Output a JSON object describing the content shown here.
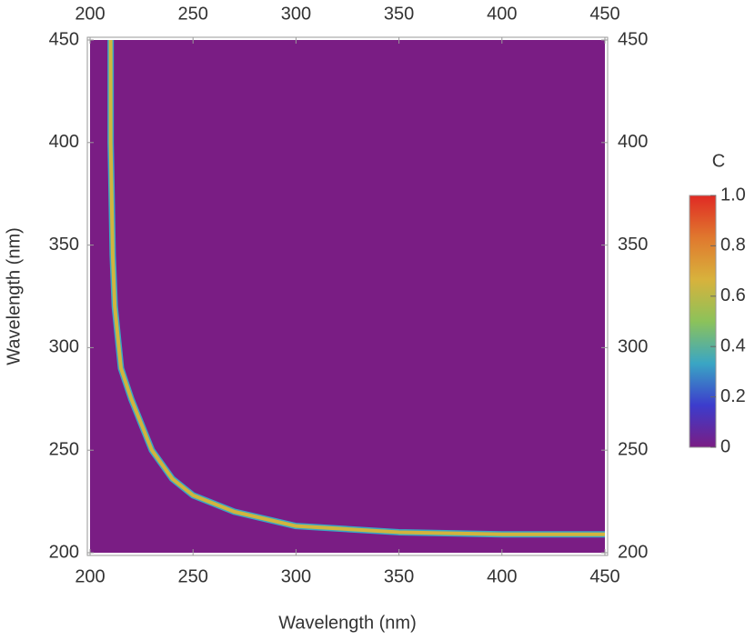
{
  "chart_data": {
    "type": "heatmap-curve",
    "xlabel": "Wavelength (nm)",
    "ylabel": "Wavelength (nm)",
    "xlim": [
      200,
      450
    ],
    "ylim": [
      200,
      450
    ],
    "xticks": [
      200,
      250,
      300,
      350,
      400,
      450
    ],
    "yticks": [
      200,
      250,
      300,
      350,
      400,
      450
    ],
    "background": "#7a1d84",
    "series": [
      {
        "color": "#d2b43e",
        "x": [
          210,
          210,
          211,
          212,
          215,
          220,
          230,
          240,
          250,
          270,
          300,
          350,
          400,
          450
        ],
        "values": [
          450,
          400,
          345,
          320,
          290,
          275,
          250,
          236,
          228,
          220,
          213,
          210,
          209,
          209
        ]
      }
    ],
    "colorbar": {
      "title": "C",
      "lim": [
        0,
        1
      ],
      "ticks": [
        0,
        0.2,
        0.4,
        0.6,
        0.8,
        {
          "value": 1,
          "label": "1.0"
        }
      ],
      "colors": [
        "#7a1d84",
        "#3c3ccc",
        "#3aa6c4",
        "#8cc25a",
        "#d8b23c",
        "#e0782e",
        "#e02a24"
      ]
    }
  }
}
